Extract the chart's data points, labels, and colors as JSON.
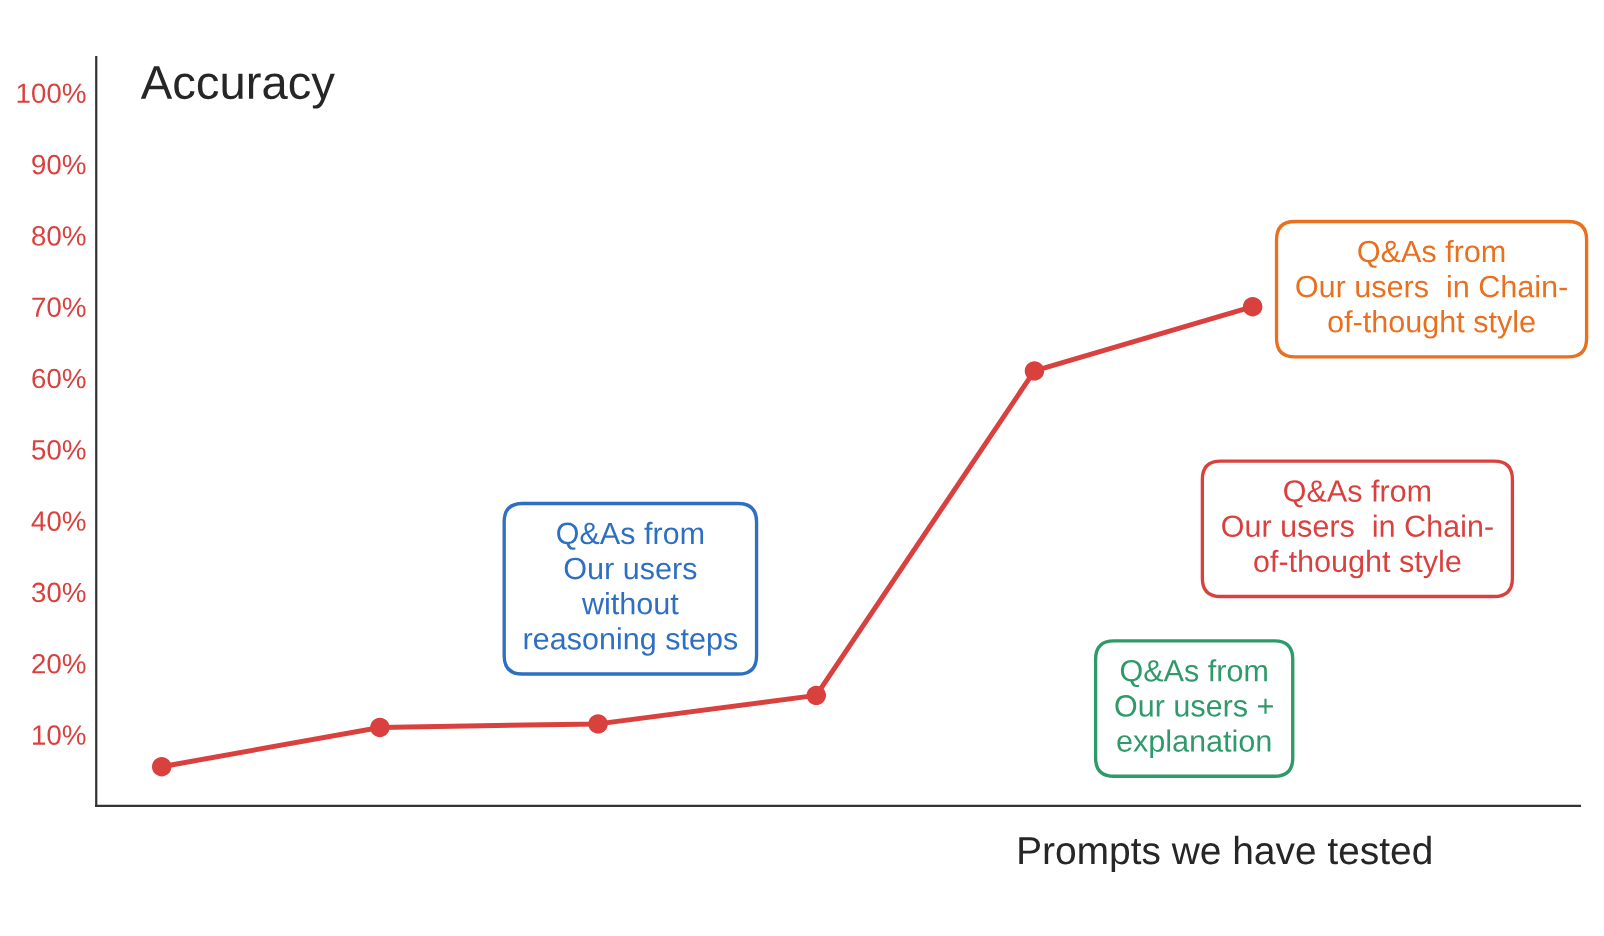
{
  "chart_data": {
    "type": "line",
    "title": "Accuracy",
    "xlabel": "Prompts we have tested",
    "categories": [
      null,
      null,
      null,
      null,
      null,
      null
    ],
    "series": [
      {
        "color": "#d9413f",
        "values": [
          5.5,
          11,
          11.5,
          15.5,
          61,
          70
        ]
      }
    ],
    "marker": "circle",
    "ylim": [
      0,
      105
    ],
    "yticks": [
      {
        "value": 10,
        "label": "10%"
      },
      {
        "value": 20,
        "label": "20%"
      },
      {
        "value": 30,
        "label": "30%"
      },
      {
        "value": 40,
        "label": "40%"
      },
      {
        "value": 50,
        "label": "50%"
      },
      {
        "value": 60,
        "label": "60%"
      },
      {
        "value": 70,
        "label": "70%"
      },
      {
        "value": 80,
        "label": "80%"
      },
      {
        "value": 90,
        "label": "90%"
      },
      {
        "value": 100,
        "label": "100%"
      }
    ],
    "tick_labels": "y",
    "grid": false,
    "annotations": [
      "Q&As from\nOur users\nwithout\nreasoning steps",
      "Q&As from\nOur users +\nexplanation",
      "Q&As from\nOur users  in Chain-\nof-thought style",
      "Q&As from\nOur users  in Chain-\nof-thought style"
    ]
  }
}
